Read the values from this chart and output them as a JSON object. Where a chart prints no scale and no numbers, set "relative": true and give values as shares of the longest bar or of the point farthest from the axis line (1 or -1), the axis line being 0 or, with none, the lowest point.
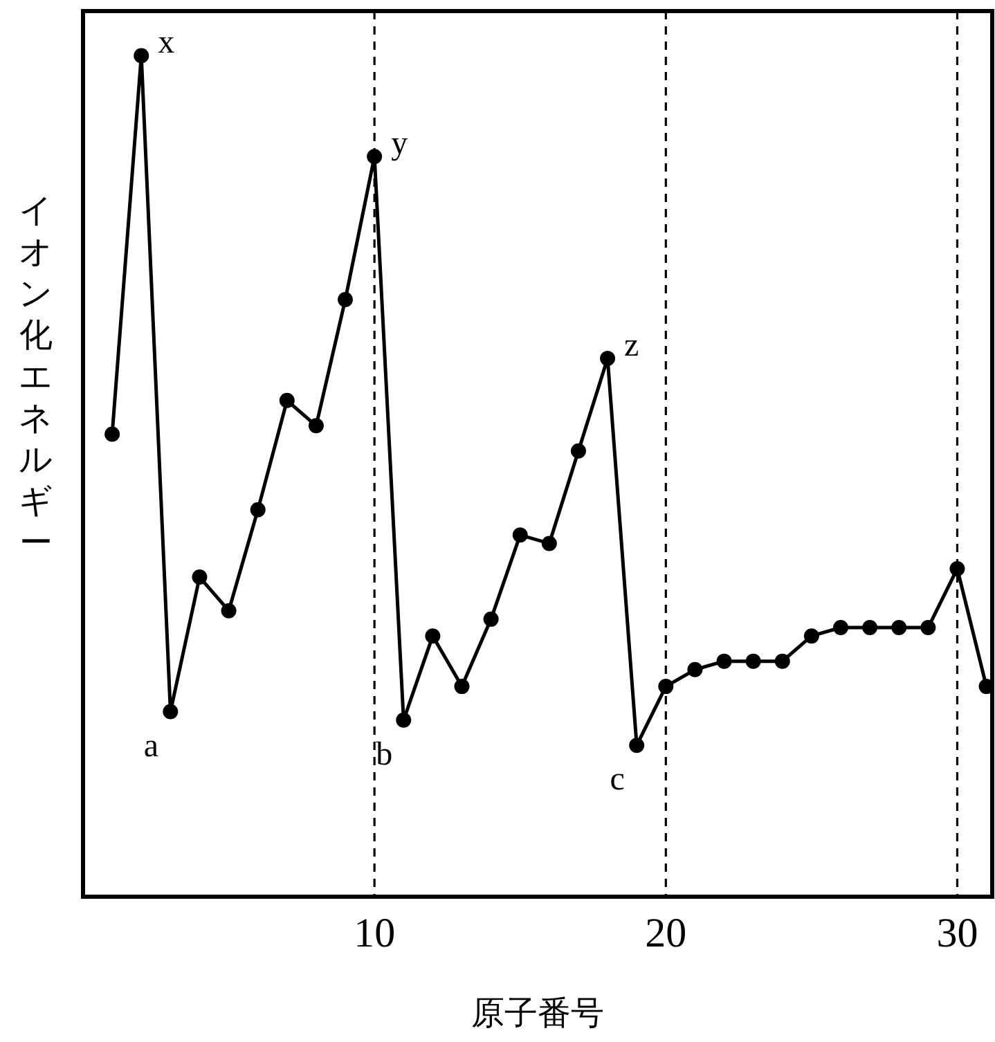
{
  "chart_data": {
    "type": "line",
    "relative": true,
    "xlabel": "原子番号",
    "ylabel": "イオン化エネルギー",
    "x": [
      1,
      2,
      3,
      4,
      5,
      6,
      7,
      8,
      9,
      10,
      11,
      12,
      13,
      14,
      15,
      16,
      17,
      18,
      19,
      20,
      21,
      22,
      23,
      24,
      25,
      26,
      27,
      28,
      29,
      30,
      31
    ],
    "series": [
      {
        "color": "#000000",
        "values": [
          0.55,
          1,
          0.22,
          0.38,
          0.34,
          0.46,
          0.59,
          0.56,
          0.71,
          0.88,
          0.21,
          0.31,
          0.25,
          0.33,
          0.43,
          0.42,
          0.53,
          0.64,
          0.18,
          0.25,
          0.27,
          0.28,
          0.28,
          0.28,
          0.31,
          0.32,
          0.32,
          0.32,
          0.32,
          0.39,
          0.25
        ]
      }
    ],
    "xlim": [
      0,
      31.2
    ],
    "xticks": [
      10,
      20,
      30
    ],
    "ref_lines": [
      {
        "axis": "x",
        "value": 10,
        "line_style": "dashed"
      },
      {
        "axis": "x",
        "value": 20,
        "line_style": "dashed"
      },
      {
        "axis": "x",
        "value": 30,
        "line_style": "dashed"
      }
    ],
    "annotations": [
      {
        "text": "x",
        "x": 2,
        "y": 1
      },
      {
        "text": "y",
        "x": 10,
        "y": 0.88
      },
      {
        "text": "z",
        "x": 18,
        "y": 0.64
      },
      {
        "text": "a",
        "x": 3,
        "y": 0.22
      },
      {
        "text": "b",
        "x": 11,
        "y": 0.21
      },
      {
        "text": "c",
        "x": 19,
        "y": 0.18
      }
    ],
    "marker": "circle",
    "line_style": "solid",
    "grid": false
  }
}
